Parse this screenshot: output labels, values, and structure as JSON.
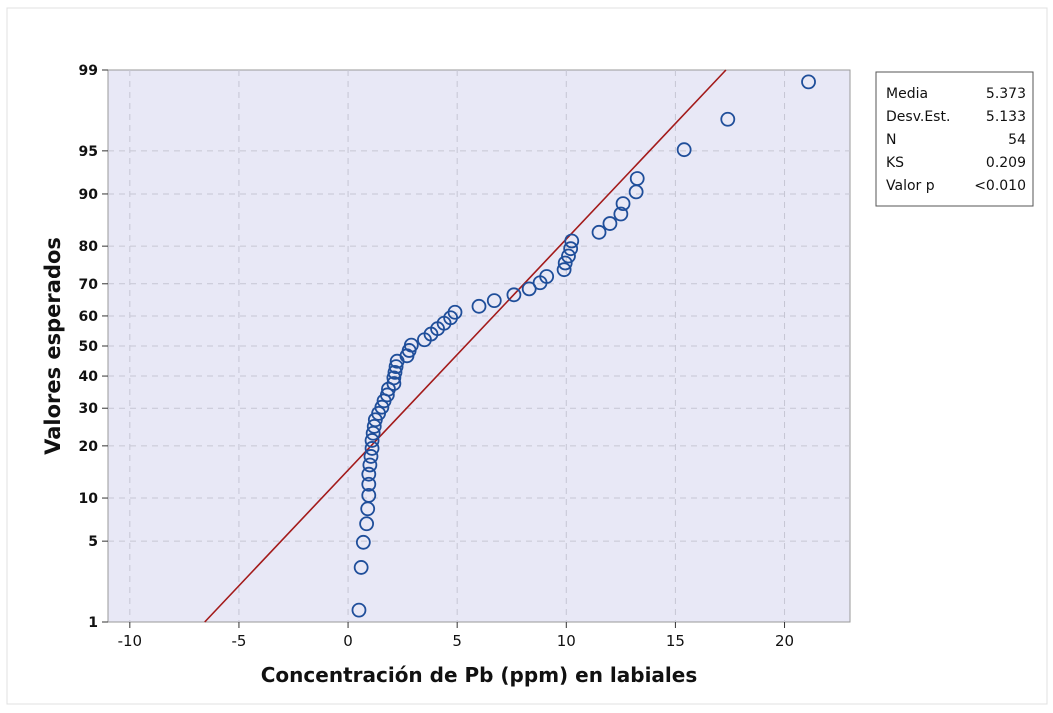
{
  "chart_data": {
    "type": "scatter",
    "subtype": "normal probability plot",
    "xlabel": "Concentración de Pb (ppm) en labiales",
    "ylabel": "Valores esperados",
    "xlim": [
      -11,
      23
    ],
    "ylim": [
      1,
      99
    ],
    "y_scale": "normal probability",
    "x_ticks": [
      -10,
      -5,
      0,
      5,
      10,
      15,
      20
    ],
    "x_tick_labels": [
      "-10",
      "-5",
      "0",
      "5",
      "10",
      "15",
      "20"
    ],
    "y_ticks": [
      1,
      5,
      10,
      20,
      30,
      40,
      50,
      60,
      70,
      80,
      90,
      95,
      99
    ],
    "y_tick_labels": [
      "1",
      "5",
      "10",
      "20",
      "30",
      "40",
      "50",
      "60",
      "70",
      "80",
      "90",
      "95",
      "99"
    ],
    "grid": true,
    "fit_line": {
      "mean": 5.373,
      "sd": 5.133,
      "color": "#a31a1a"
    },
    "points": [
      [
        0.5,
        1.3
      ],
      [
        0.6,
        3.1
      ],
      [
        0.7,
        4.9
      ],
      [
        0.85,
        6.7
      ],
      [
        0.9,
        8.5
      ],
      [
        0.95,
        10.4
      ],
      [
        0.95,
        12.2
      ],
      [
        0.95,
        14.0
      ],
      [
        1.0,
        15.8
      ],
      [
        1.05,
        17.6
      ],
      [
        1.1,
        19.4
      ],
      [
        1.1,
        21.3
      ],
      [
        1.15,
        23.1
      ],
      [
        1.2,
        24.9
      ],
      [
        1.25,
        26.7
      ],
      [
        1.4,
        28.5
      ],
      [
        1.55,
        30.3
      ],
      [
        1.65,
        32.2
      ],
      [
        1.8,
        34.0
      ],
      [
        1.85,
        35.8
      ],
      [
        2.1,
        37.6
      ],
      [
        2.1,
        39.4
      ],
      [
        2.15,
        41.2
      ],
      [
        2.2,
        43.1
      ],
      [
        2.25,
        44.9
      ],
      [
        2.7,
        46.7
      ],
      [
        2.8,
        48.5
      ],
      [
        2.9,
        50.3
      ],
      [
        3.5,
        52.1
      ],
      [
        3.8,
        54.0
      ],
      [
        4.1,
        55.8
      ],
      [
        4.4,
        57.6
      ],
      [
        4.7,
        59.4
      ],
      [
        4.9,
        61.2
      ],
      [
        6.0,
        63.1
      ],
      [
        6.7,
        64.9
      ],
      [
        7.6,
        66.7
      ],
      [
        8.3,
        68.5
      ],
      [
        8.8,
        70.3
      ],
      [
        9.1,
        72.1
      ],
      [
        9.9,
        74.0
      ],
      [
        9.95,
        75.8
      ],
      [
        10.1,
        77.6
      ],
      [
        10.2,
        79.4
      ],
      [
        10.25,
        81.2
      ],
      [
        11.5,
        83.1
      ],
      [
        12.0,
        84.9
      ],
      [
        12.5,
        86.7
      ],
      [
        12.6,
        88.5
      ],
      [
        13.2,
        90.3
      ],
      [
        13.25,
        92.1
      ],
      [
        15.4,
        95.1
      ],
      [
        17.4,
        97.2
      ],
      [
        21.1,
        98.7
      ]
    ],
    "marker_color": "#1f4e9a",
    "plot_background": "#e8e8f6"
  },
  "stats_box": {
    "rows": [
      {
        "label": "Media",
        "value": "5.373"
      },
      {
        "label": "Desv.Est.",
        "value": "5.133"
      },
      {
        "label": "N",
        "value": "54"
      },
      {
        "label": "KS",
        "value": "0.209"
      },
      {
        "label": "Valor p",
        "value": "<0.010"
      }
    ]
  }
}
